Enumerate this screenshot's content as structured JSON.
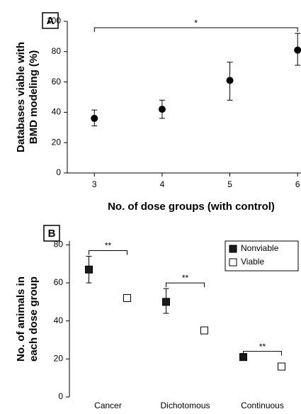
{
  "chart_data": [
    {
      "type": "scatter",
      "panel": "A",
      "y_label": [
        "Databases viable with",
        "BMD modeling (%)"
      ],
      "x_label": "No. of dose groups (with control)",
      "x": [
        3,
        4,
        5,
        6
      ],
      "values": [
        36,
        42,
        61,
        81
      ],
      "lower": [
        31,
        36,
        48,
        71
      ],
      "upper": [
        41.5,
        48,
        73,
        92
      ],
      "color": "#000000",
      "xlim": [
        2.6,
        6.05
      ],
      "xticks": [
        3,
        4,
        5,
        6
      ],
      "ylim": [
        0,
        100
      ],
      "yticks": [
        0,
        20,
        40,
        60,
        80,
        100
      ],
      "annotations": [
        {
          "text": "*",
          "from": 0,
          "to": 3
        }
      ]
    },
    {
      "type": "dot",
      "panel": "B",
      "y_label": [
        "No. of animals in",
        "each dose group"
      ],
      "categories": [
        "Cancer",
        "Dichotomous",
        "Continuous"
      ],
      "series": [
        {
          "name": "Nonviable",
          "color": "#1a1a1a",
          "values": [
            67,
            50,
            21
          ],
          "lower": [
            60,
            44,
            null
          ],
          "upper": [
            74,
            57,
            null
          ]
        },
        {
          "name": "Viable",
          "color": "#ffffff",
          "values": [
            52,
            35,
            16
          ]
        }
      ],
      "ylim": [
        0,
        82
      ],
      "yticks": [
        0,
        20,
        40,
        60,
        80
      ],
      "legend": "top-right",
      "annotations": [
        {
          "text": "**",
          "category": 0
        },
        {
          "text": "**",
          "category": 1
        },
        {
          "text": "**",
          "category": 2
        }
      ]
    }
  ]
}
